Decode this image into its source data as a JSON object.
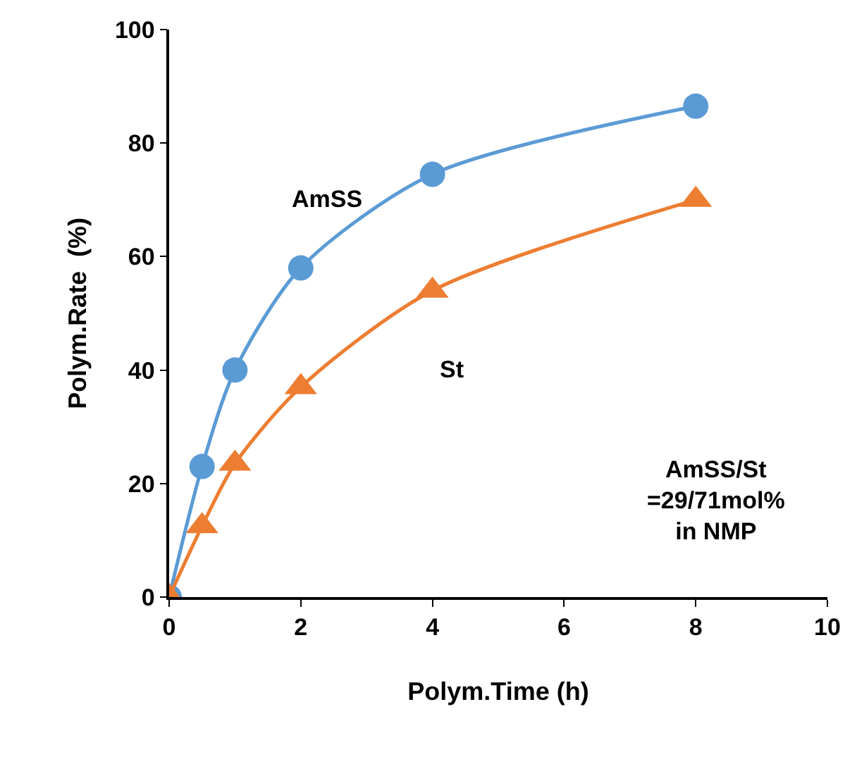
{
  "chart_data": {
    "type": "line",
    "xlabel": "Polym.Time (h)",
    "ylabel": "Polym.Rate  (%)",
    "x": [
      0,
      0.5,
      1,
      2,
      4,
      8
    ],
    "series": [
      {
        "name": "AmSS",
        "color": "#5b9bd5",
        "marker": "circle",
        "values": [
          0,
          23,
          40,
          58,
          74.5,
          86.5
        ]
      },
      {
        "name": "St",
        "color": "#ed7d31",
        "marker": "triangle",
        "values": [
          0,
          12.5,
          23.5,
          37,
          54,
          70
        ]
      }
    ],
    "annotations": [
      "AmSS/St\n=29/71mol%\nin NMP"
    ],
    "xlim": [
      0,
      10
    ],
    "xticks": [
      0,
      2,
      4,
      6,
      8,
      10
    ],
    "ylim": [
      0,
      100
    ],
    "yticks": [
      0,
      20,
      40,
      60,
      80,
      100
    ],
    "grid": false,
    "legend": false
  }
}
